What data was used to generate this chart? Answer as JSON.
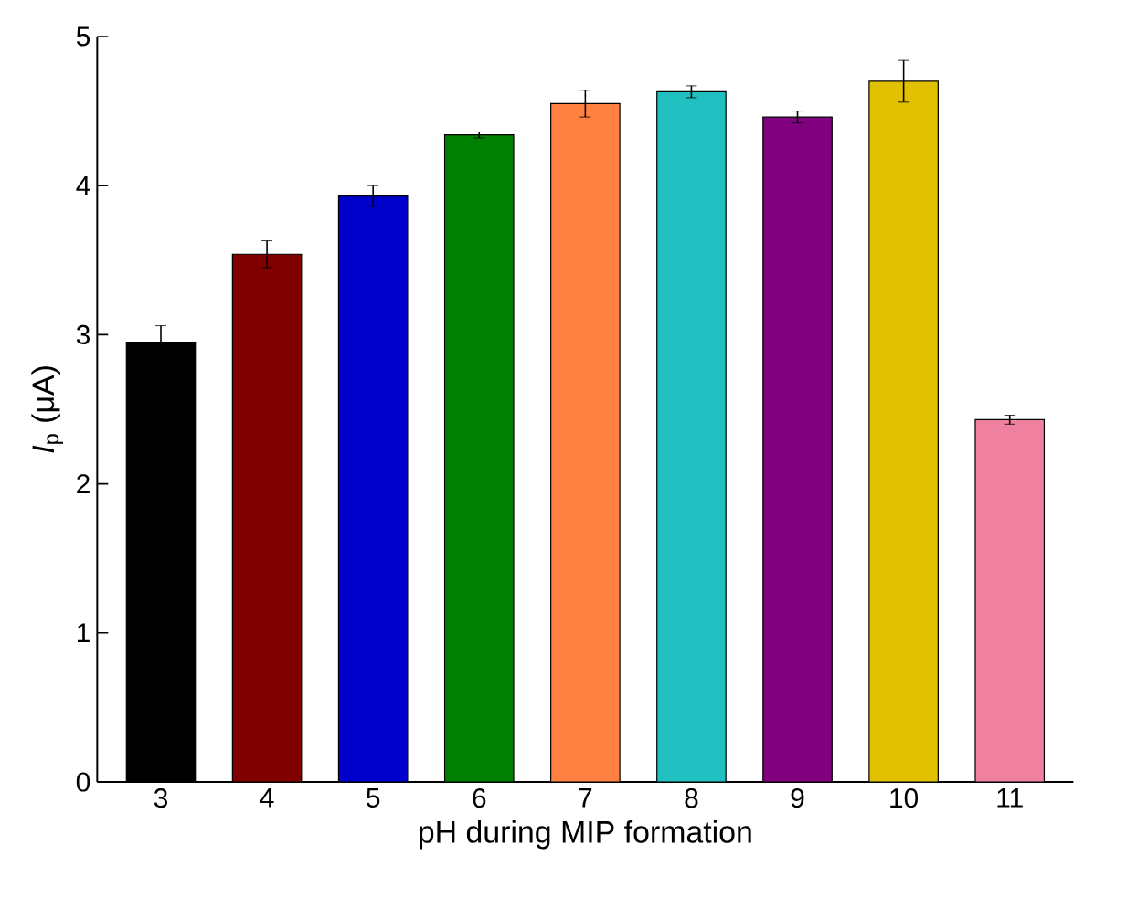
{
  "chart_data": {
    "type": "bar",
    "xlabel": "pH during MIP formation",
    "ylabel": "*I*$_{p}$ (μA)",
    "categories": [
      "3",
      "4",
      "5",
      "6",
      "7",
      "8",
      "9",
      "10",
      "11"
    ],
    "values": [
      2.95,
      3.54,
      3.93,
      4.34,
      4.55,
      4.63,
      4.46,
      4.7,
      2.43
    ],
    "errors": [
      0.11,
      0.09,
      0.07,
      0.02,
      0.09,
      0.04,
      0.04,
      0.14,
      0.03
    ],
    "colors": [
      "#000000",
      "#800000",
      "#0000cc",
      "#008000",
      "#ff8040",
      "#20c0c0",
      "#800080",
      "#e0c000",
      "#f080a0"
    ],
    "ylim": [
      0,
      5
    ],
    "yticks": [
      0,
      1,
      2,
      3,
      4,
      5
    ]
  }
}
